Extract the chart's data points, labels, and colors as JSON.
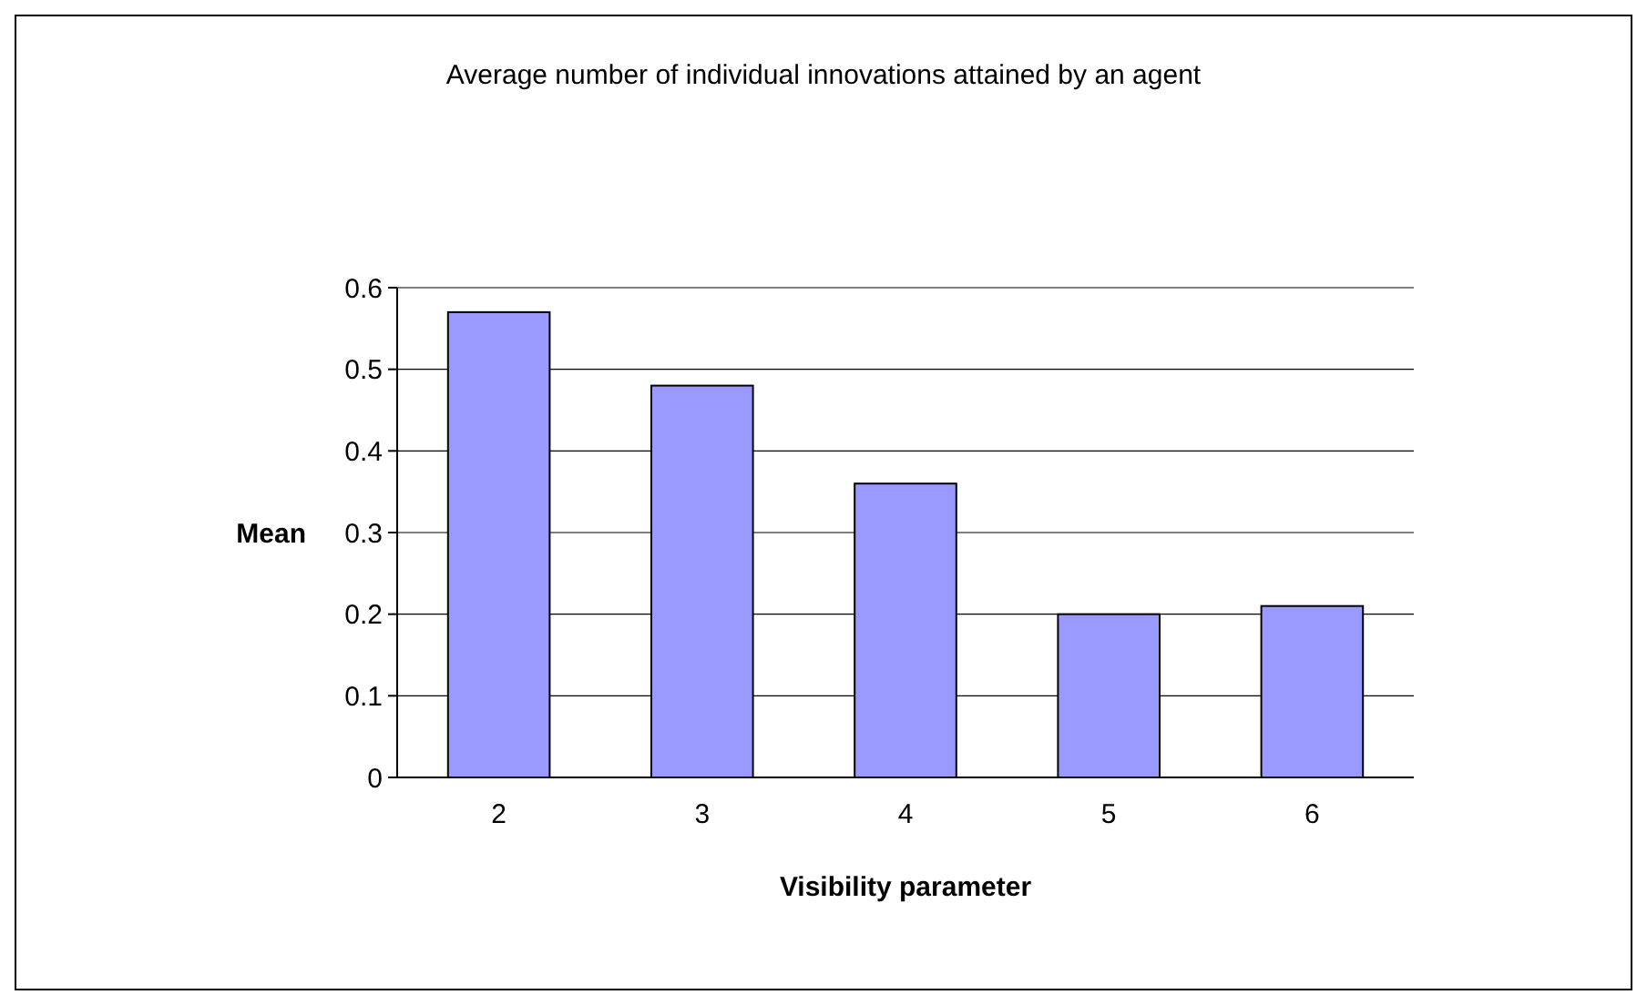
{
  "chart_data": {
    "type": "bar",
    "title": "Average number of individual innovations attained by an agent",
    "xlabel": "Visibility parameter",
    "ylabel": "Mean",
    "categories": [
      "2",
      "3",
      "4",
      "5",
      "6"
    ],
    "values": [
      0.57,
      0.48,
      0.36,
      0.2,
      0.21
    ],
    "color": "#9999ff",
    "ylim": [
      0,
      0.6
    ],
    "yticks": [
      0,
      0.1,
      0.2,
      0.3,
      0.4,
      0.5,
      0.6
    ],
    "grid": "y"
  }
}
